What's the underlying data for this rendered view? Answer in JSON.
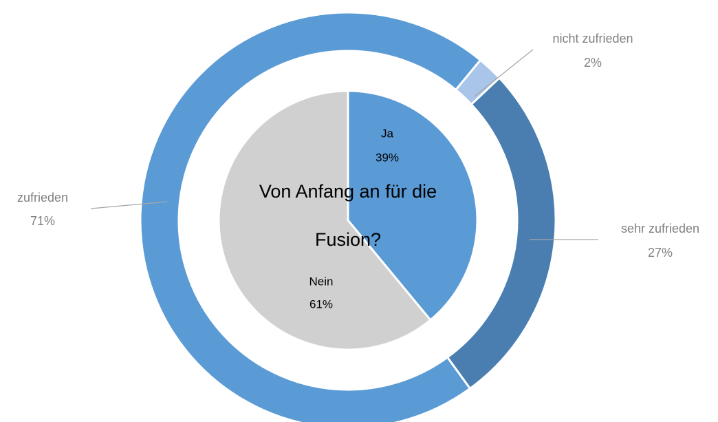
{
  "chart_data": [
    {
      "type": "pie",
      "title": "Von Anfang an für die Fusion?",
      "categories": [
        "Ja",
        "Nein"
      ],
      "values": [
        39,
        61
      ],
      "value_labels": [
        "39%",
        "61%"
      ],
      "colors": [
        "#5b9bd5",
        "#d0d0d0"
      ]
    },
    {
      "type": "donut",
      "categories": [
        "zufrieden",
        "nicht zufrieden",
        "sehr zufrieden"
      ],
      "values": [
        71,
        2,
        27
      ],
      "value_labels": [
        "71%",
        "2%",
        "27%"
      ],
      "colors": [
        "#5b9bd5",
        "#a9c5ea",
        "#4a7eb0"
      ]
    }
  ]
}
